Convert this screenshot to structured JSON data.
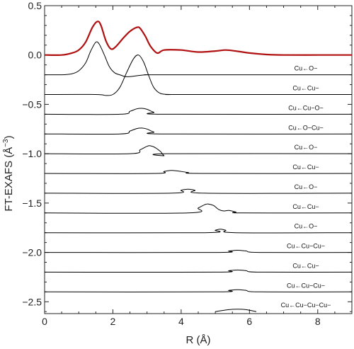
{
  "chart_data": {
    "type": "line",
    "xlabel": "R (Å)",
    "ylabel_main": "FT-EXAFS (Å",
    "ylabel_sup": "−3",
    "ylabel_close": ")",
    "xlim": [
      0,
      9
    ],
    "ylim": [
      -2.62,
      0.5
    ],
    "xticks": [
      0,
      2,
      4,
      6,
      8
    ],
    "xtick_labels": [
      "0",
      "2",
      "4",
      "6",
      "8"
    ],
    "yticks": [
      0.5,
      0.0,
      -0.5,
      -1.0,
      -1.5,
      -2.0,
      -2.5
    ],
    "ytick_labels": [
      "0.5",
      "0.0",
      "−0.5",
      "−1.0",
      "−1.5",
      "−2.0",
      "−2.5"
    ],
    "colors": {
      "total": "#b01010",
      "path": "#000000",
      "frame": "#222222"
    },
    "total": {
      "x": [
        0,
        0.5,
        0.8,
        1.0,
        1.2,
        1.4,
        1.55,
        1.65,
        1.8,
        1.95,
        2.1,
        2.3,
        2.5,
        2.7,
        2.8,
        2.95,
        3.1,
        3.3,
        3.5,
        4.0,
        4.5,
        5.0,
        5.3,
        5.6,
        6.0,
        6.5,
        7.0,
        8.0,
        9.0
      ],
      "y": [
        0.0,
        0.0,
        0.02,
        0.05,
        0.13,
        0.28,
        0.34,
        0.3,
        0.14,
        0.06,
        0.09,
        0.17,
        0.24,
        0.28,
        0.27,
        0.19,
        0.09,
        0.02,
        0.05,
        0.05,
        0.03,
        0.04,
        0.05,
        0.04,
        0.02,
        0.005,
        0.0,
        0.0,
        0.0
      ]
    },
    "paths": [
      {
        "label": "Cu←O−",
        "offset": -0.2,
        "x": [
          0,
          0.5,
          0.8,
          1.0,
          1.2,
          1.35,
          1.5,
          1.6,
          1.75,
          1.9,
          2.05,
          2.2,
          2.4,
          2.7,
          3.0,
          3.5,
          9.0
        ],
        "y": [
          0,
          0,
          0.01,
          0.04,
          0.12,
          0.24,
          0.33,
          0.31,
          0.2,
          0.08,
          0.02,
          0.0,
          -0.02,
          -0.01,
          0.0,
          0.0,
          0.0
        ]
      },
      {
        "label": "Cu←Cu−",
        "offset": -0.4,
        "x": [
          0,
          1.5,
          1.8,
          2.0,
          2.2,
          2.4,
          2.6,
          2.75,
          2.9,
          3.05,
          3.2,
          3.4,
          3.7,
          4.0,
          9.0
        ],
        "y": [
          0,
          0,
          -0.01,
          0.0,
          0.07,
          0.22,
          0.36,
          0.4,
          0.33,
          0.19,
          0.07,
          0.01,
          0.0,
          0.0,
          0.0
        ]
      },
      {
        "label": "Cu←Cu−O−",
        "offset": -0.6,
        "x": [
          0,
          2.2,
          2.5,
          2.7,
          2.85,
          3.0,
          3.2,
          3.5,
          9.0
        ],
        "y": [
          0,
          0,
          0.03,
          0.055,
          0.06,
          0.05,
          0.02,
          0.0,
          0.0
        ]
      },
      {
        "label": "Cu←O−Cu−",
        "offset": -0.8,
        "x": [
          0,
          2.2,
          2.5,
          2.7,
          2.85,
          3.0,
          3.2,
          3.5,
          9.0
        ],
        "y": [
          0,
          0,
          0.03,
          0.055,
          0.06,
          0.05,
          0.02,
          0.0,
          0.0
        ]
      },
      {
        "label": "Cu←O−",
        "offset": -1.0,
        "x": [
          0,
          2.5,
          2.8,
          3.0,
          3.1,
          3.25,
          3.4,
          3.5,
          3.6,
          9.0
        ],
        "y": [
          0,
          0,
          0.04,
          0.075,
          0.08,
          0.06,
          0.02,
          -0.02,
          0.0,
          0.0
        ]
      },
      {
        "label": "Cu←Cu−",
        "offset": -1.2,
        "x": [
          0,
          3.2,
          3.5,
          3.7,
          3.9,
          4.2,
          4.6,
          9.0
        ],
        "y": [
          0,
          0,
          0.02,
          0.03,
          0.025,
          0.01,
          0.0,
          0.0
        ]
      },
      {
        "label": "Cu←O−",
        "offset": -1.4,
        "x": [
          0,
          3.7,
          4.0,
          4.2,
          4.4,
          4.7,
          9.0
        ],
        "y": [
          0,
          0,
          0.03,
          0.04,
          0.03,
          0.0,
          0.0
        ]
      },
      {
        "label": "Cu←Cu−",
        "offset": -1.6,
        "x": [
          0,
          4.2,
          4.5,
          4.7,
          4.8,
          4.95,
          5.1,
          5.25,
          5.4,
          5.6,
          5.8,
          9.0
        ],
        "y": [
          0,
          0,
          0.05,
          0.085,
          0.09,
          0.075,
          0.035,
          0.02,
          0.025,
          0.01,
          0.0,
          0.0
        ]
      },
      {
        "label": "Cu←O−",
        "offset": -1.8,
        "x": [
          0,
          4.7,
          5.0,
          5.15,
          5.3,
          5.6,
          9.0
        ],
        "y": [
          0,
          0,
          0.025,
          0.035,
          0.025,
          0.0,
          0.0
        ]
      },
      {
        "label": "Cu←Cu−Cu−",
        "offset": -2.0,
        "x": [
          0,
          5.0,
          5.4,
          5.65,
          5.9,
          6.3,
          9.0
        ],
        "y": [
          0,
          0,
          0.015,
          0.022,
          0.015,
          0.0,
          0.0
        ]
      },
      {
        "label": "Cu←Cu−",
        "offset": -2.2,
        "x": [
          0,
          5.0,
          5.4,
          5.65,
          5.9,
          6.3,
          9.0
        ],
        "y": [
          0,
          0,
          0.015,
          0.022,
          0.015,
          0.0,
          0.0
        ]
      },
      {
        "label": "Cu←Cu−Cu−",
        "offset": -2.4,
        "x": [
          0,
          5.0,
          5.4,
          5.65,
          5.9,
          6.3,
          9.0
        ],
        "y": [
          0,
          0,
          0.015,
          0.022,
          0.015,
          0.0,
          0.0
        ]
      },
      {
        "label": "Cu←Cu−Cu−Cu−",
        "offset": -2.6,
        "x": [
          5.0,
          5.4,
          5.65,
          5.9,
          6.2
        ],
        "y": [
          0.0,
          0.02,
          0.025,
          0.02,
          0.0
        ]
      }
    ],
    "grid": false
  }
}
